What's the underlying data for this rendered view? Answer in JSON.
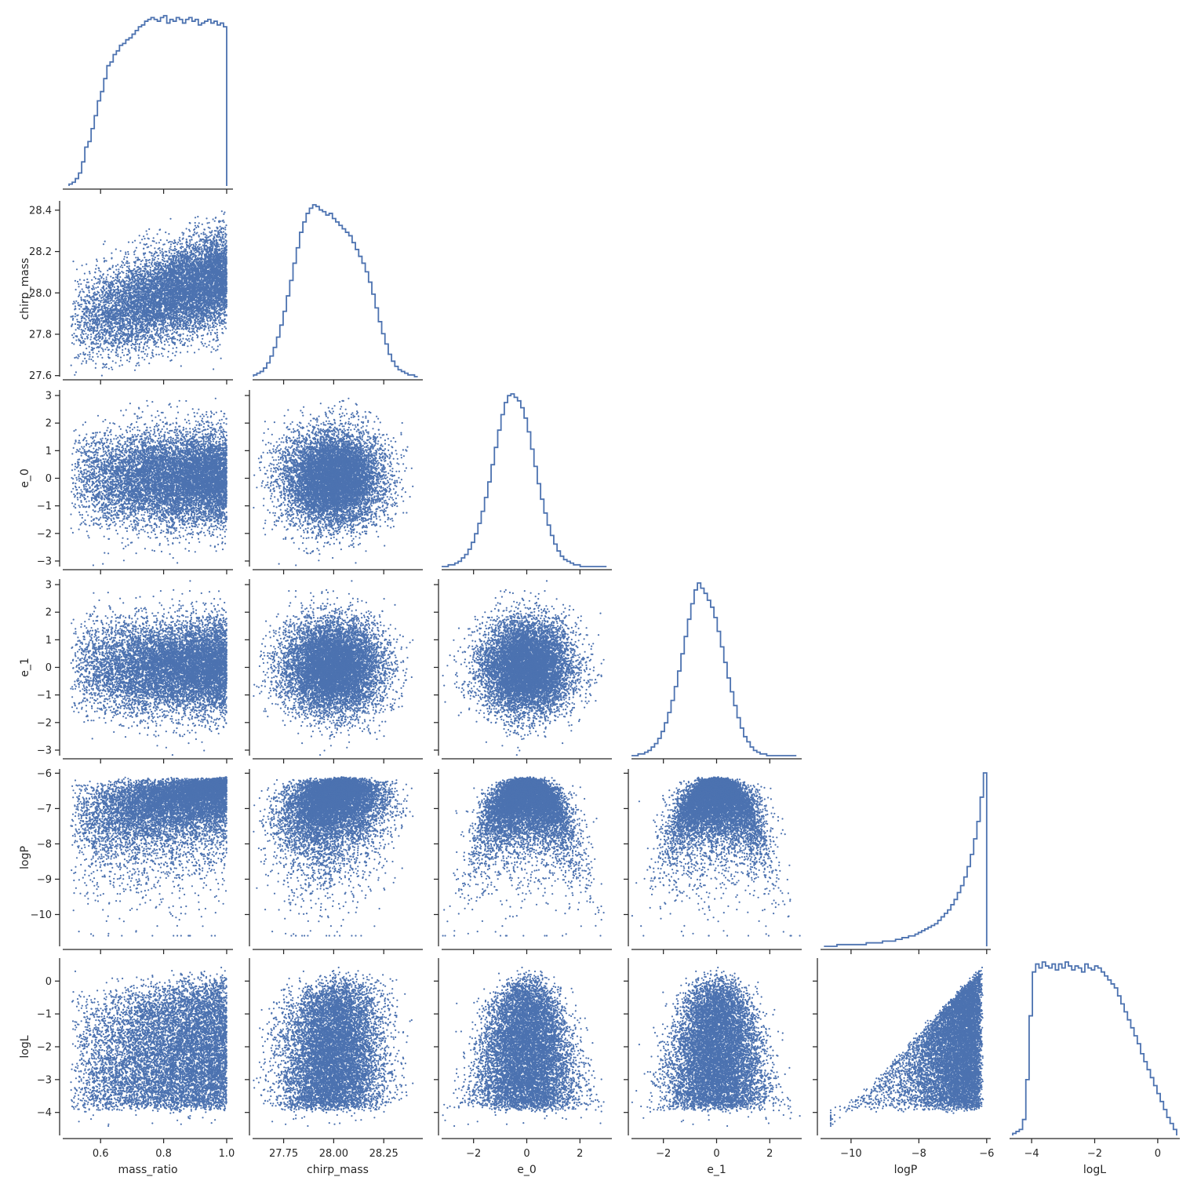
{
  "chart_data": {
    "type": "scatter",
    "layout": "corner-pairplot",
    "title": "",
    "marker_color": "#4c72b0",
    "axis_color": "#262626",
    "variables": [
      {
        "name": "mass_ratio",
        "range": [
          0.48,
          1.02
        ],
        "ticks": [
          0.6,
          0.8,
          1.0
        ],
        "tick_labels": [
          "0.6",
          "0.8",
          "1.0"
        ]
      },
      {
        "name": "chirp_mass",
        "range": [
          27.595,
          28.445
        ],
        "ticks": [
          27.6,
          27.75,
          27.8,
          28.0,
          28.2,
          28.25,
          28.4
        ],
        "tick_labels": [
          "27.6",
          "27.75",
          "27.8",
          "28.00",
          "28.2",
          "28.25",
          "28.4"
        ]
      },
      {
        "name": "e_0",
        "range": [
          -3.2,
          3.2
        ],
        "ticks": [
          -3,
          -2,
          -1,
          0,
          1,
          2,
          3
        ],
        "tick_labels": [
          "−3",
          "−2",
          "−1",
          "0",
          "1",
          "2",
          "3"
        ]
      },
      {
        "name": "e_1",
        "range": [
          -3.2,
          3.2
        ],
        "ticks": [
          -3,
          -2,
          -1,
          0,
          1,
          2,
          3
        ],
        "tick_labels": [
          "−3",
          "−2",
          "−1",
          "0",
          "1",
          "2",
          "3"
        ]
      },
      {
        "name": "logP",
        "range": [
          -10.9,
          -5.88
        ],
        "ticks": [
          -10,
          -9,
          -8,
          -7,
          -6
        ],
        "tick_labels": [
          "−10",
          "−9",
          "−8",
          "−7",
          "−6"
        ]
      },
      {
        "name": "logL",
        "range": [
          -4.7,
          0.7
        ],
        "ticks": [
          -4,
          -3,
          -2,
          -1,
          0
        ],
        "tick_labels": [
          "−4",
          "−3",
          "−2",
          "−1",
          "0"
        ]
      }
    ],
    "x_ticks_shown": {
      "mass_ratio": [
        "0.6",
        "0.8",
        "1.0"
      ],
      "chirp_mass": [
        "27.75",
        "28.00",
        "28.25"
      ],
      "e_0": [
        "−2",
        "0",
        "2"
      ],
      "e_1": [
        "−2",
        "0",
        "2"
      ],
      "logP": [
        "−10",
        "−8",
        "−6"
      ],
      "logL": [
        "−4",
        "−2",
        "0"
      ]
    },
    "y_ticks_shown": {
      "chirp_mass": [
        "27.6",
        "27.8",
        "28.0",
        "28.2",
        "28.4"
      ],
      "e_0": [
        "−3",
        "−2",
        "−1",
        "0",
        "1",
        "2",
        "3"
      ],
      "e_1": [
        "−3",
        "−2",
        "−1",
        "0",
        "1",
        "2",
        "3"
      ],
      "logP": [
        "−10",
        "−9",
        "−8",
        "−7",
        "−6"
      ],
      "logL": [
        "−4",
        "−3",
        "−2",
        "−1",
        "0"
      ]
    },
    "histograms": {
      "mass_ratio": {
        "bin_edges": [
          0.5,
          1.0
        ],
        "bins": 50,
        "counts": [
          1,
          2,
          4,
          7,
          13,
          21,
          24,
          31,
          38,
          46,
          51,
          58,
          65,
          67,
          71,
          73,
          76,
          77,
          79,
          80,
          82,
          84,
          86,
          87,
          89,
          90,
          91,
          90,
          89,
          91,
          92,
          88,
          90,
          89,
          91,
          90,
          88,
          90,
          91,
          89,
          90,
          87,
          88,
          89,
          90,
          88,
          89,
          87,
          88,
          86
        ]
      },
      "chirp_mass": {
        "bin_edges": [
          27.6,
          28.42
        ],
        "bins": 50,
        "counts": [
          1,
          2,
          3,
          5,
          8,
          12,
          17,
          23,
          30,
          38,
          47,
          56,
          66,
          75,
          84,
          90,
          95,
          98,
          100,
          99,
          97,
          96,
          94,
          95,
          92,
          90,
          88,
          86,
          84,
          82,
          78,
          74,
          70,
          66,
          61,
          55,
          48,
          40,
          32,
          25,
          19,
          13,
          9,
          6,
          4,
          3,
          2,
          1,
          1,
          0
        ]
      },
      "e_0": {
        "bin_edges": [
          -3.2,
          3.0
        ],
        "bins": 50,
        "counts": [
          0,
          0,
          1,
          1,
          2,
          3,
          5,
          7,
          10,
          14,
          19,
          25,
          32,
          40,
          49,
          59,
          69,
          79,
          88,
          95,
          99,
          100,
          98,
          96,
          92,
          86,
          78,
          68,
          58,
          48,
          39,
          31,
          24,
          18,
          13,
          9,
          6,
          4,
          3,
          2,
          1,
          1,
          0,
          0,
          0,
          0,
          0,
          0,
          0,
          0
        ]
      },
      "e_1": {
        "bin_edges": [
          -3.2,
          3.0
        ],
        "bins": 50,
        "counts": [
          0,
          0,
          1,
          1,
          2,
          3,
          5,
          7,
          10,
          14,
          19,
          25,
          32,
          40,
          49,
          59,
          69,
          79,
          88,
          96,
          100,
          97,
          94,
          90,
          86,
          80,
          72,
          63,
          54,
          45,
          37,
          29,
          22,
          16,
          11,
          8,
          5,
          3,
          2,
          1,
          1,
          0,
          0,
          0,
          0,
          0,
          0,
          0,
          0,
          0
        ]
      },
      "logP": {
        "bin_edges": [
          -10.8,
          -6.0
        ],
        "bins": 50,
        "counts": [
          0,
          0,
          0,
          0,
          1,
          1,
          1,
          1,
          1,
          1,
          1,
          1,
          1,
          2,
          2,
          2,
          2,
          2,
          3,
          3,
          3,
          3,
          4,
          4,
          5,
          5,
          6,
          6,
          7,
          8,
          9,
          10,
          11,
          12,
          13,
          15,
          17,
          19,
          21,
          24,
          27,
          31,
          35,
          40,
          46,
          53,
          62,
          72,
          86,
          100
        ]
      },
      "logL": {
        "bin_edges": [
          -4.6,
          0.6
        ],
        "bins": 50,
        "counts": [
          1,
          2,
          3,
          8,
          28,
          60,
          82,
          86,
          84,
          87,
          85,
          84,
          86,
          83,
          86,
          84,
          87,
          85,
          83,
          85,
          84,
          82,
          86,
          84,
          83,
          85,
          84,
          82,
          80,
          78,
          76,
          74,
          70,
          66,
          62,
          58,
          54,
          50,
          46,
          41,
          37,
          33,
          29,
          25,
          21,
          17,
          13,
          9,
          6,
          3
        ]
      }
    },
    "scatter_pairs": [
      {
        "x": "mass_ratio",
        "y": "chirp_mass",
        "points": 9000,
        "relation": "y upper and lower envelopes rise with x, mean ~27.85 at 0.5 to ~28.08 near 1.0"
      },
      {
        "x": "mass_ratio",
        "y": "e_0",
        "points": 9000,
        "relation": "independent, x uniform-ish 0.5-1.0, y ~N(0,0.85)"
      },
      {
        "x": "chirp_mass",
        "y": "e_0",
        "points": 9000,
        "relation": "independent Gaussian blob"
      },
      {
        "x": "mass_ratio",
        "y": "e_1",
        "points": 9000,
        "relation": "independent"
      },
      {
        "x": "chirp_mass",
        "y": "e_1",
        "points": 9000,
        "relation": "independent"
      },
      {
        "x": "e_0",
        "y": "e_1",
        "points": 9000,
        "relation": "independent circular blob"
      },
      {
        "x": "mass_ratio",
        "y": "logP",
        "points": 9000,
        "relation": "logP capped at -6.1, tail widens toward high mass_ratio"
      },
      {
        "x": "chirp_mass",
        "y": "logP",
        "points": 9000,
        "relation": "logP capped at -6.1, V-shaped tail centred at 28.05"
      },
      {
        "x": "e_0",
        "y": "logP",
        "points": 9000,
        "relation": "logP <= -6.1 - 0.55*e_0^2, parabolic envelope"
      },
      {
        "x": "e_1",
        "y": "logP",
        "points": 9000,
        "relation": "logP <= -6.1 - 0.55*e_1^2, parabolic envelope"
      },
      {
        "x": "mass_ratio",
        "y": "logL",
        "points": 9000,
        "relation": "upper envelope rises from -3.8 at 0.5 to 0.5 near 1.0"
      },
      {
        "x": "chirp_mass",
        "y": "logL",
        "points": 9000,
        "relation": "triangular, peak 0.5 at 28.05"
      },
      {
        "x": "e_0",
        "y": "logL",
        "points": 9000,
        "relation": "logL <= 0.5 - 0.65*e_0^2"
      },
      {
        "x": "e_1",
        "y": "logL",
        "points": 9000,
        "relation": "logL <= 0.5 - 0.65*e_1^2"
      },
      {
        "x": "logP",
        "y": "logL",
        "points": 9000,
        "relation": "wedge: logL upper bound rises linearly from -3.8 at -10 to 0.5 at -6"
      }
    ]
  }
}
